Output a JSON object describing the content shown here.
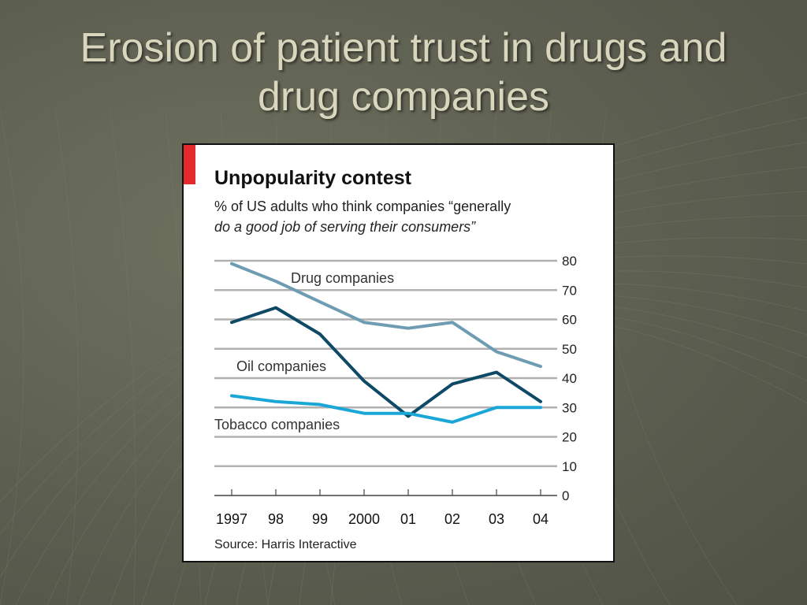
{
  "slide": {
    "title_line1": "Erosion of patient trust in drugs and",
    "title_line2": "drug companies"
  },
  "colors": {
    "background": "#5f6153",
    "title_text": "#d8d6bc",
    "accent_red": "#e32b2b",
    "drug": "#6e9db3",
    "oil": "#0e4a66",
    "tobacco": "#1aa6d6",
    "gridline": "#b0b0b0"
  },
  "chart_data": {
    "type": "line",
    "title": "Unpopularity contest",
    "subtitle_line1": "% of US adults who think companies “generally",
    "subtitle_line2": "do a good job of serving their consumers”",
    "source": "Source: Harris Interactive",
    "categories": [
      "1997",
      "98",
      "99",
      "2000",
      "01",
      "02",
      "03",
      "04"
    ],
    "ylim": [
      0,
      80
    ],
    "yticks": [
      0,
      10,
      20,
      30,
      40,
      50,
      60,
      70,
      80
    ],
    "grid": true,
    "series": [
      {
        "name": "Drug companies",
        "color": "#6e9db3",
        "values": [
          79,
          73,
          66,
          59,
          57,
          59,
          49,
          44
        ]
      },
      {
        "name": "Oil companies",
        "color": "#0e4a66",
        "values": [
          59,
          64,
          55,
          39,
          27,
          38,
          42,
          32
        ]
      },
      {
        "name": "Tobacco companies",
        "color": "#1aa6d6",
        "values": [
          34,
          32,
          31,
          28,
          28,
          25,
          30,
          30
        ]
      }
    ]
  }
}
